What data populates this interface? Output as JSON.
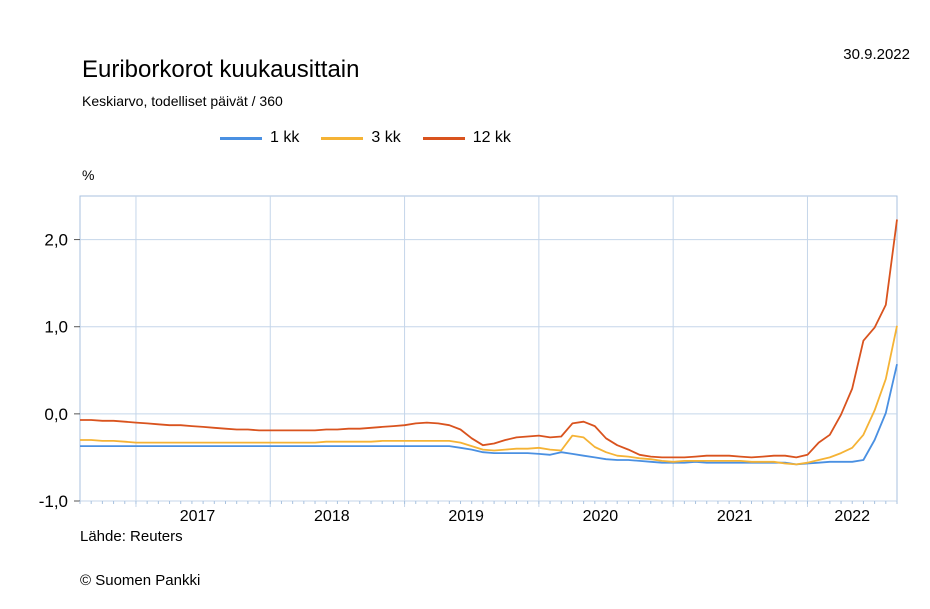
{
  "header": {
    "title": "Euriborkorot kuukausittain",
    "subtitle": "Keskiarvo, todelliset päivät / 360",
    "date": "30.9.2022",
    "unit": "%"
  },
  "footer": {
    "source": "Lähde: Reuters",
    "copyright": "© Suomen Pankki"
  },
  "colors": {
    "grid": "#c5d6ea",
    "axis": "#a8c2df"
  },
  "chart_data": {
    "type": "line",
    "title": "Euriborkorot kuukausittain",
    "subtitle": "Keskiarvo, todelliset päivät / 360",
    "ylabel": "%",
    "ylim": [
      -1.0,
      2.5
    ],
    "yticks": [
      -1.0,
      0.0,
      1.0,
      2.0
    ],
    "ytick_labels": [
      "-1,0",
      "0,0",
      "1,0",
      "2,0"
    ],
    "xlim": [
      "2016-08",
      "2022-09"
    ],
    "x_year_labels": [
      "2017",
      "2018",
      "2019",
      "2020",
      "2021",
      "2022"
    ],
    "grid": true,
    "legend_position": "top",
    "x": [
      "2016-08",
      "2016-09",
      "2016-10",
      "2016-11",
      "2016-12",
      "2017-01",
      "2017-02",
      "2017-03",
      "2017-04",
      "2017-05",
      "2017-06",
      "2017-07",
      "2017-08",
      "2017-09",
      "2017-10",
      "2017-11",
      "2017-12",
      "2018-01",
      "2018-02",
      "2018-03",
      "2018-04",
      "2018-05",
      "2018-06",
      "2018-07",
      "2018-08",
      "2018-09",
      "2018-10",
      "2018-11",
      "2018-12",
      "2019-01",
      "2019-02",
      "2019-03",
      "2019-04",
      "2019-05",
      "2019-06",
      "2019-07",
      "2019-08",
      "2019-09",
      "2019-10",
      "2019-11",
      "2019-12",
      "2020-01",
      "2020-02",
      "2020-03",
      "2020-04",
      "2020-05",
      "2020-06",
      "2020-07",
      "2020-08",
      "2020-09",
      "2020-10",
      "2020-11",
      "2020-12",
      "2021-01",
      "2021-02",
      "2021-03",
      "2021-04",
      "2021-05",
      "2021-06",
      "2021-07",
      "2021-08",
      "2021-09",
      "2021-10",
      "2021-11",
      "2021-12",
      "2022-01",
      "2022-02",
      "2022-03",
      "2022-04",
      "2022-05",
      "2022-06",
      "2022-07",
      "2022-08",
      "2022-09"
    ],
    "series": [
      {
        "name": "1 kk",
        "color": "#4a90e2",
        "values": [
          -0.37,
          -0.37,
          -0.37,
          -0.37,
          -0.37,
          -0.37,
          -0.37,
          -0.37,
          -0.37,
          -0.37,
          -0.37,
          -0.37,
          -0.37,
          -0.37,
          -0.37,
          -0.37,
          -0.37,
          -0.37,
          -0.37,
          -0.37,
          -0.37,
          -0.37,
          -0.37,
          -0.37,
          -0.37,
          -0.37,
          -0.37,
          -0.37,
          -0.37,
          -0.37,
          -0.37,
          -0.37,
          -0.37,
          -0.37,
          -0.39,
          -0.41,
          -0.44,
          -0.45,
          -0.45,
          -0.45,
          -0.45,
          -0.46,
          -0.47,
          -0.44,
          -0.46,
          -0.48,
          -0.5,
          -0.52,
          -0.53,
          -0.53,
          -0.54,
          -0.55,
          -0.56,
          -0.56,
          -0.56,
          -0.55,
          -0.56,
          -0.56,
          -0.56,
          -0.56,
          -0.56,
          -0.56,
          -0.56,
          -0.56,
          -0.58,
          -0.57,
          -0.56,
          -0.55,
          -0.55,
          -0.55,
          -0.53,
          -0.3,
          0.01,
          0.57
        ]
      },
      {
        "name": "3 kk",
        "color": "#f5b335",
        "values": [
          -0.3,
          -0.3,
          -0.31,
          -0.31,
          -0.32,
          -0.33,
          -0.33,
          -0.33,
          -0.33,
          -0.33,
          -0.33,
          -0.33,
          -0.33,
          -0.33,
          -0.33,
          -0.33,
          -0.33,
          -0.33,
          -0.33,
          -0.33,
          -0.33,
          -0.33,
          -0.32,
          -0.32,
          -0.32,
          -0.32,
          -0.32,
          -0.31,
          -0.31,
          -0.31,
          -0.31,
          -0.31,
          -0.31,
          -0.31,
          -0.33,
          -0.37,
          -0.41,
          -0.42,
          -0.41,
          -0.4,
          -0.4,
          -0.39,
          -0.41,
          -0.42,
          -0.25,
          -0.27,
          -0.38,
          -0.44,
          -0.48,
          -0.49,
          -0.51,
          -0.52,
          -0.54,
          -0.55,
          -0.54,
          -0.54,
          -0.54,
          -0.54,
          -0.54,
          -0.54,
          -0.55,
          -0.55,
          -0.55,
          -0.57,
          -0.58,
          -0.56,
          -0.53,
          -0.5,
          -0.45,
          -0.39,
          -0.24,
          0.04,
          0.4,
          1.01
        ]
      },
      {
        "name": "12 kk",
        "color": "#d9531e",
        "values": [
          -0.07,
          -0.07,
          -0.08,
          -0.08,
          -0.09,
          -0.1,
          -0.11,
          -0.12,
          -0.13,
          -0.13,
          -0.14,
          -0.15,
          -0.16,
          -0.17,
          -0.18,
          -0.18,
          -0.19,
          -0.19,
          -0.19,
          -0.19,
          -0.19,
          -0.19,
          -0.18,
          -0.18,
          -0.17,
          -0.17,
          -0.16,
          -0.15,
          -0.14,
          -0.13,
          -0.11,
          -0.1,
          -0.11,
          -0.13,
          -0.18,
          -0.28,
          -0.36,
          -0.34,
          -0.3,
          -0.27,
          -0.26,
          -0.25,
          -0.27,
          -0.26,
          -0.11,
          -0.09,
          -0.14,
          -0.28,
          -0.36,
          -0.41,
          -0.47,
          -0.49,
          -0.5,
          -0.5,
          -0.5,
          -0.49,
          -0.48,
          -0.48,
          -0.48,
          -0.49,
          -0.5,
          -0.49,
          -0.48,
          -0.48,
          -0.5,
          -0.47,
          -0.33,
          -0.24,
          -0.01,
          0.29,
          0.84,
          0.99,
          1.25,
          2.23
        ]
      }
    ]
  }
}
